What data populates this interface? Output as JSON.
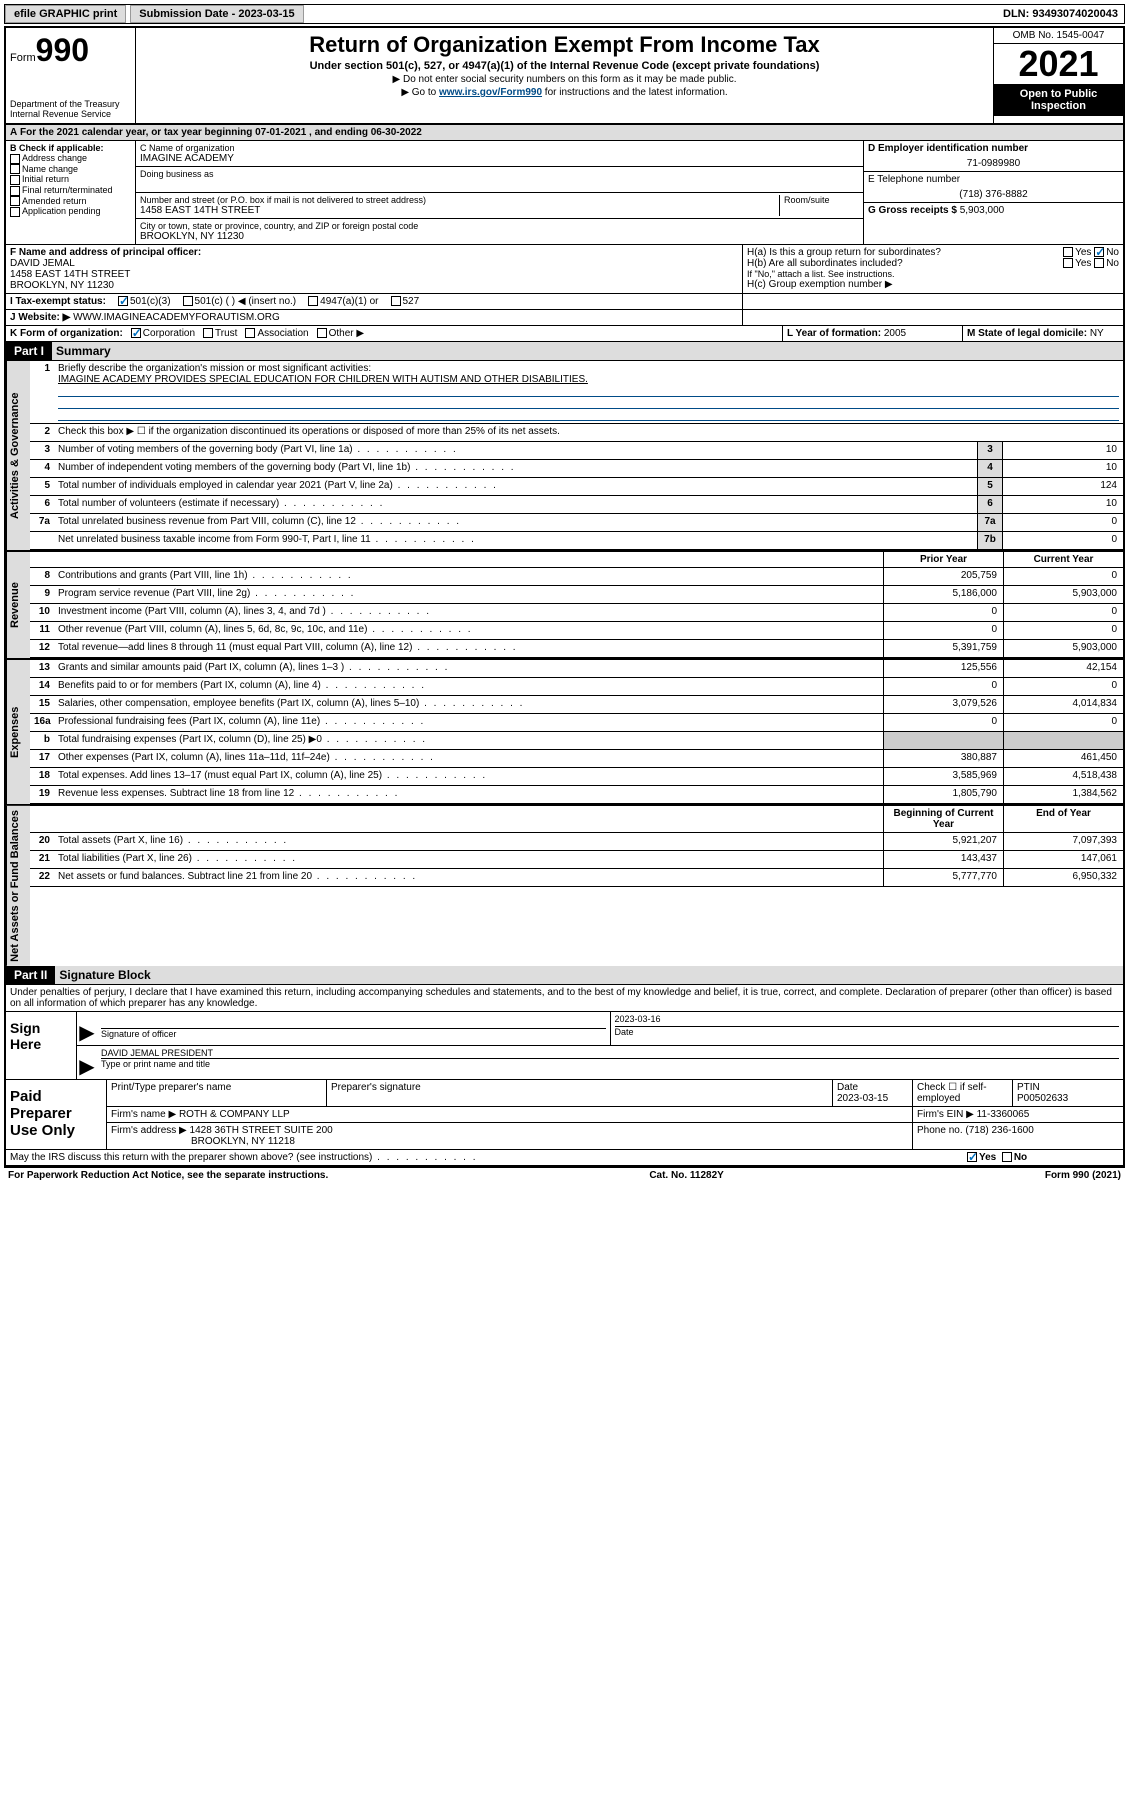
{
  "topbar": {
    "efile": "efile GRAPHIC print",
    "subdate_label": "Submission Date - ",
    "subdate": "2023-03-15",
    "dln": "DLN: 93493074020043"
  },
  "header": {
    "form_prefix": "Form",
    "form_num": "990",
    "dept": "Department of the Treasury\nInternal Revenue Service",
    "title": "Return of Organization Exempt From Income Tax",
    "sub": "Under section 501(c), 527, or 4947(a)(1) of the Internal Revenue Code (except private foundations)",
    "note1": "▶ Do not enter social security numbers on this form as it may be made public.",
    "note2_pre": "▶ Go to ",
    "note2_link": "www.irs.gov/Form990",
    "note2_post": " for instructions and the latest information.",
    "omb": "OMB No. 1545-0047",
    "year": "2021",
    "otp": "Open to Public Inspection"
  },
  "a_line": "For the 2021 calendar year, or tax year beginning 07-01-2021   , and ending 06-30-2022",
  "checkB": {
    "label": "B Check if applicable:",
    "items": [
      "Address change",
      "Name change",
      "Initial return",
      "Final return/terminated",
      "Amended return",
      "Application pending"
    ]
  },
  "org": {
    "name_label": "C Name of organization",
    "name": "IMAGINE ACADEMY",
    "dba": "Doing business as",
    "addr_label": "Number and street (or P.O. box if mail is not delivered to street address)",
    "room": "Room/suite",
    "addr": "1458 EAST 14TH STREET",
    "city_label": "City or town, state or province, country, and ZIP or foreign postal code",
    "city": "BROOKLYN, NY  11230"
  },
  "right": {
    "ein_label": "D Employer identification number",
    "ein": "71-0989980",
    "tel_label": "E Telephone number",
    "tel": "(718) 376-8882",
    "gross_label": "G Gross receipts $ ",
    "gross": "5,903,000"
  },
  "f": {
    "label": "F Name and address of principal officer:",
    "name": "DAVID JEMAL",
    "addr1": "1458 EAST 14TH STREET",
    "addr2": "BROOKLYN, NY  11230"
  },
  "h": {
    "a": "H(a)  Is this a group return for subordinates?",
    "b": "H(b)  Are all subordinates included?",
    "note": "If \"No,\" attach a list. See instructions.",
    "c": "H(c)  Group exemption number ▶",
    "yes": "Yes",
    "no": "No"
  },
  "i": {
    "label": "I  Tax-exempt status:",
    "opts": [
      "501(c)(3)",
      "501(c) (  ) ◀ (insert no.)",
      "4947(a)(1) or",
      "527"
    ]
  },
  "j": {
    "label": "J  Website: ▶",
    "val": "WWW.IMAGINEACADEMYFORAUTISM.ORG"
  },
  "k": {
    "label": "K Form of organization:",
    "opts": [
      "Corporation",
      "Trust",
      "Association",
      "Other ▶"
    ]
  },
  "l": {
    "label": "L Year of formation: ",
    "val": "2005"
  },
  "m": {
    "label": "M State of legal domicile: ",
    "val": "NY"
  },
  "part1": {
    "label": "Part I",
    "title": "Summary"
  },
  "p1": {
    "l1": "Briefly describe the organization's mission or most significant activities:",
    "l1v": "IMAGINE ACADEMY PROVIDES SPECIAL EDUCATION FOR CHILDREN WITH AUTISM AND OTHER DISABILITIES.",
    "l2": "Check this box ▶ ☐  if the organization discontinued its operations or disposed of more than 25% of its net assets.",
    "rows_gov": [
      {
        "n": "3",
        "t": "Number of voting members of the governing body (Part VI, line 1a)",
        "bn": "3",
        "v": "10"
      },
      {
        "n": "4",
        "t": "Number of independent voting members of the governing body (Part VI, line 1b)",
        "bn": "4",
        "v": "10"
      },
      {
        "n": "5",
        "t": "Total number of individuals employed in calendar year 2021 (Part V, line 2a)",
        "bn": "5",
        "v": "124"
      },
      {
        "n": "6",
        "t": "Total number of volunteers (estimate if necessary)",
        "bn": "6",
        "v": "10"
      },
      {
        "n": "7a",
        "t": "Total unrelated business revenue from Part VIII, column (C), line 12",
        "bn": "7a",
        "v": "0"
      },
      {
        "n": "",
        "t": "Net unrelated business taxable income from Form 990-T, Part I, line 11",
        "bn": "7b",
        "v": "0"
      }
    ],
    "col_prior": "Prior Year",
    "col_curr": "Current Year",
    "rev": [
      {
        "n": "8",
        "t": "Contributions and grants (Part VIII, line 1h)",
        "p": "205,759",
        "c": "0"
      },
      {
        "n": "9",
        "t": "Program service revenue (Part VIII, line 2g)",
        "p": "5,186,000",
        "c": "5,903,000"
      },
      {
        "n": "10",
        "t": "Investment income (Part VIII, column (A), lines 3, 4, and 7d )",
        "p": "0",
        "c": "0"
      },
      {
        "n": "11",
        "t": "Other revenue (Part VIII, column (A), lines 5, 6d, 8c, 9c, 10c, and 11e)",
        "p": "0",
        "c": "0"
      },
      {
        "n": "12",
        "t": "Total revenue—add lines 8 through 11 (must equal Part VIII, column (A), line 12)",
        "p": "5,391,759",
        "c": "5,903,000"
      }
    ],
    "exp": [
      {
        "n": "13",
        "t": "Grants and similar amounts paid (Part IX, column (A), lines 1–3 )",
        "p": "125,556",
        "c": "42,154"
      },
      {
        "n": "14",
        "t": "Benefits paid to or for members (Part IX, column (A), line 4)",
        "p": "0",
        "c": "0"
      },
      {
        "n": "15",
        "t": "Salaries, other compensation, employee benefits (Part IX, column (A), lines 5–10)",
        "p": "3,079,526",
        "c": "4,014,834"
      },
      {
        "n": "16a",
        "t": "Professional fundraising fees (Part IX, column (A), line 11e)",
        "p": "0",
        "c": "0"
      },
      {
        "n": "b",
        "t": "Total fundraising expenses (Part IX, column (D), line 25) ▶0",
        "p": "",
        "c": "",
        "gray": true
      },
      {
        "n": "17",
        "t": "Other expenses (Part IX, column (A), lines 11a–11d, 11f–24e)",
        "p": "380,887",
        "c": "461,450"
      },
      {
        "n": "18",
        "t": "Total expenses. Add lines 13–17 (must equal Part IX, column (A), line 25)",
        "p": "3,585,969",
        "c": "4,518,438"
      },
      {
        "n": "19",
        "t": "Revenue less expenses. Subtract line 18 from line 12",
        "p": "1,805,790",
        "c": "1,384,562"
      }
    ],
    "col_beg": "Beginning of Current Year",
    "col_end": "End of Year",
    "net": [
      {
        "n": "20",
        "t": "Total assets (Part X, line 16)",
        "p": "5,921,207",
        "c": "7,097,393"
      },
      {
        "n": "21",
        "t": "Total liabilities (Part X, line 26)",
        "p": "143,437",
        "c": "147,061"
      },
      {
        "n": "22",
        "t": "Net assets or fund balances. Subtract line 21 from line 20",
        "p": "5,777,770",
        "c": "6,950,332"
      }
    ],
    "vlab_gov": "Activities & Governance",
    "vlab_rev": "Revenue",
    "vlab_exp": "Expenses",
    "vlab_net": "Net Assets or Fund Balances"
  },
  "part2": {
    "label": "Part II",
    "title": "Signature Block"
  },
  "penalty": "Under penalties of perjury, I declare that I have examined this return, including accompanying schedules and statements, and to the best of my knowledge and belief, it is true, correct, and complete. Declaration of preparer (other than officer) is based on all information of which preparer has any knowledge.",
  "sign": {
    "here": "Sign Here",
    "officer": "Signature of officer",
    "date": "Date",
    "dateval": "2023-03-16",
    "name": "DAVID JEMAL PRESIDENT",
    "name_label": "Type or print name and title"
  },
  "prep": {
    "title": "Paid Preparer Use Only",
    "h": [
      "Print/Type preparer's name",
      "Preparer's signature",
      "Date",
      "",
      "PTIN"
    ],
    "date": "2023-03-15",
    "check": "Check ☐ if self-employed",
    "ptin": "P00502633",
    "firm_label": "Firm's name    ▶ ",
    "firm": "ROTH & COMPANY LLP",
    "ein_label": "Firm's EIN ▶ ",
    "ein": "11-3360065",
    "addr_label": "Firm's address ▶ ",
    "addr": "1428 36TH STREET SUITE 200",
    "addr2": "BROOKLYN, NY  11218",
    "phone_label": "Phone no. ",
    "phone": "(718) 236-1600"
  },
  "discuss": "May the IRS discuss this return with the preparer shown above? (see instructions)",
  "discuss_yes": "Yes",
  "discuss_no": "No",
  "footer": {
    "left": "For Paperwork Reduction Act Notice, see the separate instructions.",
    "mid": "Cat. No. 11282Y",
    "right": "Form 990 (2021)"
  }
}
